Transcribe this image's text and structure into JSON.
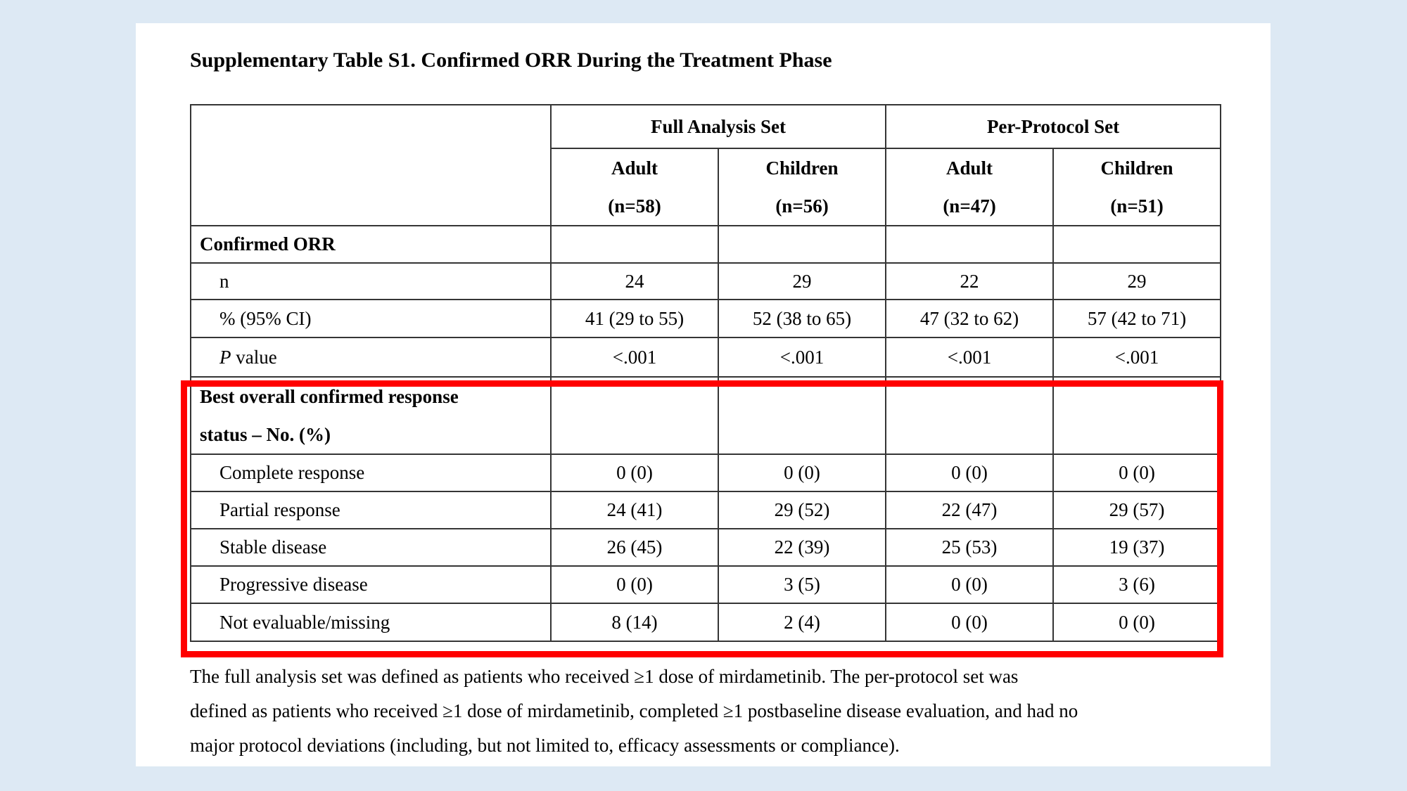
{
  "doc": {
    "title": "Supplementary Table S1. Confirmed ORR During the Treatment Phase"
  },
  "colors": {
    "background": "#dde9f4",
    "page": "#ffffff",
    "table_border": "#353535",
    "highlight_border": "#ff0000",
    "text": "#000000"
  },
  "table": {
    "group_headers": [
      "Full Analysis Set",
      "Per-Protocol Set"
    ],
    "column_headers": [
      {
        "name": "Adult",
        "n": "(n=58)"
      },
      {
        "name": "Children",
        "n": "(n=56)"
      },
      {
        "name": "Adult",
        "n": "(n=47)"
      },
      {
        "name": "Children",
        "n": "(n=51)"
      }
    ],
    "rows": [
      {
        "label": "Confirmed ORR",
        "values": [
          "",
          "",
          "",
          ""
        ]
      },
      {
        "label": "n",
        "values": [
          "24",
          "29",
          "22",
          "29"
        ]
      },
      {
        "label": "% (95% CI)",
        "values": [
          "41 (29 to 55)",
          "52 (38 to 65)",
          "47 (32 to 62)",
          "57 (42 to 71)"
        ]
      },
      {
        "label_italic": "P",
        "label_rest": " value",
        "values": [
          "<.001",
          "<.001",
          "<.001",
          "<.001"
        ]
      },
      {
        "label_line1": "Best overall confirmed response",
        "label_line2": "status – No. (%)",
        "values": [
          "",
          "",
          "",
          ""
        ]
      },
      {
        "label": "Complete response",
        "values": [
          "0 (0)",
          "0 (0)",
          "0 (0)",
          "0 (0)"
        ]
      },
      {
        "label": "Partial response",
        "values": [
          "24 (41)",
          "29 (52)",
          "22 (47)",
          "29 (57)"
        ]
      },
      {
        "label": "Stable disease",
        "values": [
          "26 (45)",
          "22 (39)",
          "25 (53)",
          "19 (37)"
        ]
      },
      {
        "label": "Progressive disease",
        "values": [
          "0 (0)",
          "3 (5)",
          "0 (0)",
          "3 (6)"
        ]
      },
      {
        "label": "Not evaluable/missing",
        "values": [
          "8 (14)",
          "2 (4)",
          "0 (0)",
          "0 (0)"
        ]
      }
    ]
  },
  "footnote": {
    "line1": "The full analysis set was defined as patients who received ≥1 dose of mirdametinib. The per-protocol set was",
    "line2": "defined as patients who received ≥1 dose of mirdametinib, completed ≥1 postbaseline disease evaluation, and had no",
    "line3": "major protocol deviations (including, but not limited to, efficacy assessments or compliance)."
  }
}
